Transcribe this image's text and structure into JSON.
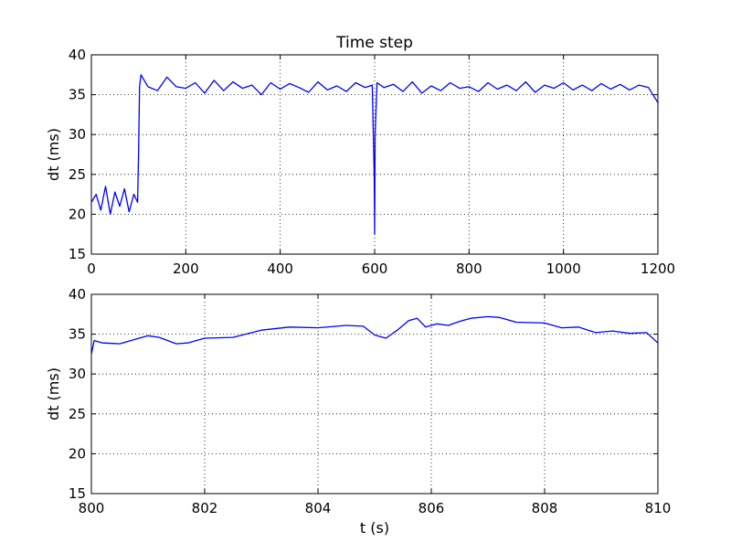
{
  "chart_data": [
    {
      "type": "line",
      "title": "Time step",
      "xlabel": "",
      "ylabel": "dt (ms)",
      "xlim": [
        0,
        1200
      ],
      "ylim": [
        15,
        40
      ],
      "xticks": [
        0,
        200,
        400,
        600,
        800,
        1000,
        1200
      ],
      "yticks": [
        15,
        20,
        25,
        30,
        35,
        40
      ],
      "xtick_labels": [
        "0",
        "200",
        "400",
        "600",
        "800",
        "1000",
        "1200"
      ],
      "ytick_labels": [
        "15",
        "20",
        "25",
        "30",
        "35",
        "40"
      ],
      "grid": true,
      "line_color": "#0000ff",
      "series": [
        {
          "x": [
            0,
            10,
            20,
            30,
            40,
            50,
            60,
            70,
            80,
            90,
            98,
            100,
            102,
            105,
            110,
            120,
            140,
            160,
            180,
            200,
            220,
            240,
            260,
            280,
            300,
            320,
            340,
            360,
            380,
            400,
            420,
            440,
            460,
            480,
            500,
            520,
            540,
            560,
            580,
            595,
            599,
            600,
            601,
            605,
            620,
            640,
            660,
            680,
            700,
            720,
            740,
            760,
            780,
            800,
            820,
            840,
            860,
            880,
            900,
            920,
            940,
            960,
            980,
            1000,
            1020,
            1040,
            1060,
            1080,
            1100,
            1120,
            1140,
            1160,
            1180,
            1200
          ],
          "values": [
            21.5,
            22.5,
            20.5,
            23.5,
            20,
            22.8,
            21,
            23.2,
            20.3,
            22.5,
            21.5,
            28,
            36,
            37.5,
            37,
            36,
            35.5,
            37.2,
            36,
            35.8,
            36.5,
            35.2,
            36.8,
            35.5,
            36.6,
            35.8,
            36.2,
            35,
            36.5,
            35.7,
            36.4,
            35.9,
            35.3,
            36.6,
            35.6,
            36.1,
            35.4,
            36.5,
            35.9,
            36.2,
            25,
            17.5,
            30,
            36.5,
            35.9,
            36.3,
            35.4,
            36.6,
            35.2,
            36.1,
            35.5,
            36.5,
            35.8,
            36,
            35.4,
            36.5,
            35.7,
            36.2,
            35.5,
            36.6,
            35.3,
            36.2,
            35.8,
            36.5,
            35.6,
            36.2,
            35.5,
            36.4,
            35.7,
            36.3,
            35.6,
            36.2,
            35.9,
            34
          ]
        }
      ]
    },
    {
      "type": "line",
      "title": "",
      "xlabel": "t (s)",
      "ylabel": "dt (ms)",
      "xlim": [
        800,
        810
      ],
      "ylim": [
        15,
        40
      ],
      "xticks": [
        800,
        802,
        804,
        806,
        808,
        810
      ],
      "yticks": [
        15,
        20,
        25,
        30,
        35,
        40
      ],
      "xtick_labels": [
        "800",
        "802",
        "804",
        "806",
        "808",
        "810"
      ],
      "ytick_labels": [
        "15",
        "20",
        "25",
        "30",
        "35",
        "40"
      ],
      "grid": true,
      "line_color": "#0000ff",
      "series": [
        {
          "x": [
            800,
            800.05,
            800.2,
            800.5,
            800.8,
            801.0,
            801.2,
            801.5,
            801.7,
            802.0,
            802.5,
            803.0,
            803.5,
            804.0,
            804.5,
            804.8,
            805.0,
            805.2,
            805.4,
            805.6,
            805.75,
            805.9,
            806.1,
            806.3,
            806.5,
            806.7,
            807.0,
            807.2,
            807.5,
            808.0,
            808.3,
            808.6,
            808.9,
            809.2,
            809.5,
            809.8,
            810.0
          ],
          "values": [
            32.5,
            34.2,
            33.9,
            33.8,
            34.4,
            34.8,
            34.6,
            33.8,
            33.9,
            34.5,
            34.6,
            35.5,
            35.9,
            35.8,
            36.1,
            36.0,
            34.9,
            34.5,
            35.5,
            36.7,
            37.0,
            35.9,
            36.3,
            36.1,
            36.6,
            37.0,
            37.2,
            37.1,
            36.5,
            36.4,
            35.8,
            35.9,
            35.2,
            35.4,
            35.1,
            35.2,
            33.9
          ]
        }
      ]
    }
  ]
}
